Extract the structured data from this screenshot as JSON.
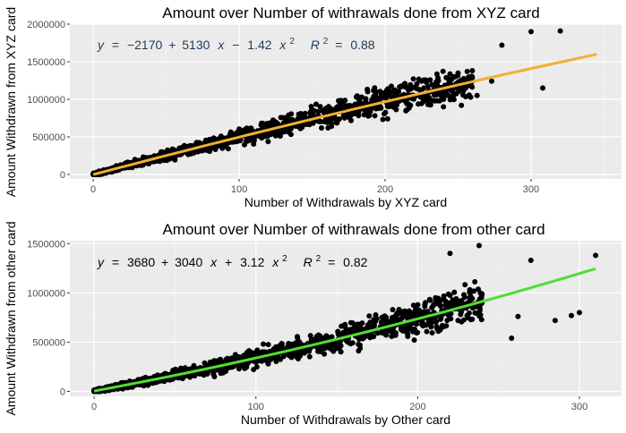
{
  "chart_data": [
    {
      "type": "scatter",
      "title": "Amount over Number of withrawals done from XYZ card",
      "xlabel": "Number of Withdrawals by XYZ card",
      "ylabel": "Amount Withdrawn from XYZ card",
      "xlim": [
        -16,
        362
      ],
      "ylim": [
        -60000,
        2000000
      ],
      "x_ticks": [
        0,
        100,
        200,
        300
      ],
      "x_tick_labels": [
        "0",
        "100",
        "200",
        "300"
      ],
      "y_ticks": [
        0,
        500000,
        1000000,
        1500000,
        2000000
      ],
      "y_tick_labels": [
        "0",
        "500000",
        "1000000",
        "1500000",
        "2000000"
      ],
      "grid": true,
      "point_color": "#000000",
      "fit_color": "#f0b030",
      "fit": {
        "intercept": -2170,
        "linear": 5130,
        "quadratic": -1.42,
        "r2": 0.88,
        "x_range": [
          0,
          345
        ]
      },
      "equation": {
        "color": "#1f3b5a",
        "lhs": "y",
        "eq": "=",
        "c0": "−2170",
        "plus1": "+",
        "c1": "5130",
        "x1": "x",
        "op2": "−",
        "c2": "1.42",
        "x2": "x",
        "exp": "2",
        "r": "R",
        "r_exp": "2",
        "r_eq": "=",
        "r2": "0.88"
      },
      "notable_points": [
        [
          320,
          1910000
        ],
        [
          300,
          1900000
        ],
        [
          280,
          1720000
        ],
        [
          250,
          1350000
        ],
        [
          273,
          1240000
        ],
        [
          308,
          1150000
        ],
        [
          263,
          1050000
        ],
        [
          240,
          900000
        ]
      ],
      "cloud": {
        "n": 1500,
        "x_max": 260,
        "seed": 7,
        "noise_base": 25000,
        "noise_slope": 0.22
      }
    },
    {
      "type": "scatter",
      "title": "Amount over Number of withrawals done from other card",
      "xlabel": "Number of Withdrawals by Other card",
      "ylabel": "Amount Withdrawn from other card",
      "xlim": [
        -15,
        326
      ],
      "ylim": [
        -50000,
        1530000
      ],
      "x_ticks": [
        0,
        100,
        200,
        300
      ],
      "x_tick_labels": [
        "0",
        "100",
        "200",
        "300"
      ],
      "y_ticks": [
        0,
        500000,
        1000000,
        1500000
      ],
      "y_tick_labels": [
        "0",
        "500000",
        "1000000",
        "1500000"
      ],
      "grid": true,
      "point_color": "#000000",
      "fit_color": "#4fe030",
      "fit": {
        "intercept": 3680,
        "linear": 3040,
        "quadratic": 3.12,
        "r2": 0.82,
        "x_range": [
          0,
          310
        ]
      },
      "equation": {
        "color": "#000000",
        "lhs": "y",
        "eq": "=",
        "c0": "3680",
        "plus1": "+",
        "c1": "3040",
        "x1": "x",
        "op2": "+",
        "c2": "3.12",
        "x2": "x",
        "exp": "2",
        "r": "R",
        "r_exp": "2",
        "r_eq": "=",
        "r2": "0.82"
      },
      "notable_points": [
        [
          238,
          1480000
        ],
        [
          220,
          1400000
        ],
        [
          310,
          1380000
        ],
        [
          270,
          1330000
        ],
        [
          300,
          800000
        ],
        [
          295,
          770000
        ],
        [
          285,
          720000
        ],
        [
          262,
          760000
        ],
        [
          258,
          540000
        ],
        [
          225,
          720000
        ],
        [
          215,
          650000
        ]
      ],
      "cloud": {
        "n": 1500,
        "x_max": 240,
        "seed": 11,
        "noise_base": 20000,
        "noise_slope": 0.28
      }
    }
  ]
}
